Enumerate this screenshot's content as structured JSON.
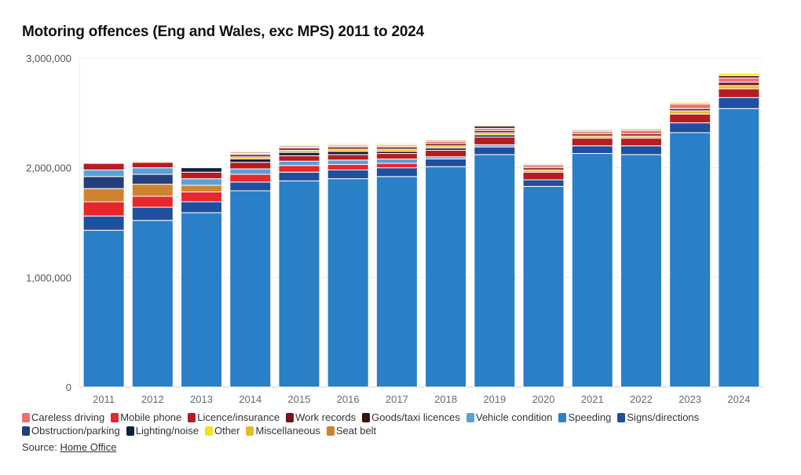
{
  "title": "Motoring offences (Eng and Wales, exc MPS) 2011 to 2024",
  "source": {
    "label": "Source:",
    "link": "Home Office"
  },
  "legend": [
    {
      "name": "Careless driving",
      "color": "#ef6f77"
    },
    {
      "name": "Mobile phone",
      "color": "#e8262b"
    },
    {
      "name": "Licence/insurance",
      "color": "#b71c22"
    },
    {
      "name": "Work records",
      "color": "#7a1416"
    },
    {
      "name": "Goods/taxi licences",
      "color": "#3a1010"
    },
    {
      "name": "Vehicle condition",
      "color": "#5ca0d8"
    },
    {
      "name": "Speeding",
      "color": "#2a7fc6"
    },
    {
      "name": "Signs/directions",
      "color": "#1f4f9f"
    },
    {
      "name": "Obstruction/parking",
      "color": "#253f7a"
    },
    {
      "name": "Lighting/noise",
      "color": "#10203f"
    },
    {
      "name": "Other",
      "color": "#f4e21c"
    },
    {
      "name": "Miscellaneous",
      "color": "#e9b92a"
    },
    {
      "name": "Seat belt",
      "color": "#cf8331"
    }
  ],
  "chart_data": {
    "type": "bar",
    "stacked": true,
    "title": "Motoring offences (Eng and Wales, exc MPS) 2011 to 2024",
    "xlabel": "",
    "ylabel": "",
    "ylim": [
      0,
      3000000
    ],
    "yticks": [
      "0",
      "1,000,000",
      "2,000,000",
      "3,000,000"
    ],
    "yticks_values": [
      0,
      1000000,
      2000000,
      3000000
    ],
    "grid": true,
    "legend_position": "bottom",
    "categories": [
      "2011",
      "2012",
      "2013",
      "2014",
      "2015",
      "2016",
      "2017",
      "2018",
      "2019",
      "2020",
      "2021",
      "2022",
      "2023",
      "2024"
    ],
    "series": [
      {
        "name": "Speeding",
        "color": "#2a7fc6",
        "values": [
          1430000,
          1520000,
          1590000,
          1790000,
          1880000,
          1900000,
          1920000,
          2010000,
          2120000,
          1830000,
          2130000,
          2120000,
          2320000,
          2540000
        ]
      },
      {
        "name": "Signs/directions",
        "color": "#1f4f9f",
        "values": [
          130000,
          120000,
          100000,
          80000,
          80000,
          80000,
          80000,
          70000,
          70000,
          60000,
          70000,
          80000,
          90000,
          100000
        ]
      },
      {
        "name": "Mobile phone",
        "color": "#e8262b",
        "values": [
          130000,
          100000,
          90000,
          70000,
          60000,
          50000,
          40000,
          0,
          0,
          0,
          0,
          0,
          0,
          0
        ]
      },
      {
        "name": "Seat belt",
        "color": "#cf8331",
        "values": [
          120000,
          110000,
          60000,
          0,
          0,
          0,
          0,
          0,
          0,
          0,
          0,
          0,
          0,
          0
        ]
      },
      {
        "name": "Obstruction/parking",
        "color": "#253f7a",
        "values": [
          110000,
          90000,
          0,
          0,
          0,
          0,
          0,
          0,
          0,
          0,
          0,
          0,
          0,
          0
        ]
      },
      {
        "name": "Vehicle condition",
        "color": "#5ca0d8",
        "values": [
          60000,
          60000,
          60000,
          50000,
          40000,
          40000,
          40000,
          20000,
          20000,
          0,
          0,
          0,
          0,
          0
        ]
      },
      {
        "name": "Licence/insurance",
        "color": "#b71c22",
        "values": [
          60000,
          50000,
          60000,
          60000,
          50000,
          50000,
          50000,
          60000,
          70000,
          70000,
          70000,
          70000,
          80000,
          80000
        ]
      },
      {
        "name": "Lighting/noise",
        "color": "#10203f",
        "values": [
          0,
          0,
          40000,
          30000,
          30000,
          30000,
          20000,
          20000,
          20000,
          0,
          0,
          0,
          0,
          0
        ]
      },
      {
        "name": "Miscellaneous",
        "color": "#e9b92a",
        "values": [
          0,
          0,
          0,
          20000,
          20000,
          20000,
          20000,
          20000,
          20000,
          20000,
          20000,
          20000,
          30000,
          30000
        ]
      },
      {
        "name": "Work records",
        "color": "#7a1416",
        "values": [
          0,
          0,
          0,
          20000,
          20000,
          20000,
          20000,
          20000,
          20000,
          20000,
          20000,
          20000,
          20000,
          30000
        ]
      },
      {
        "name": "Careless driving",
        "color": "#ef6f77",
        "values": [
          0,
          0,
          0,
          10000,
          10000,
          10000,
          10000,
          20000,
          20000,
          20000,
          20000,
          30000,
          40000,
          40000
        ]
      },
      {
        "name": "Goods/taxi licences",
        "color": "#3a1010",
        "values": [
          0,
          0,
          0,
          10000,
          10000,
          10000,
          10000,
          10000,
          20000,
          10000,
          10000,
          10000,
          10000,
          20000
        ]
      },
      {
        "name": "Other",
        "color": "#f4e21c",
        "values": [
          0,
          10000,
          0,
          10000,
          10000,
          10000,
          10000,
          10000,
          10000,
          10000,
          10000,
          10000,
          10000,
          20000
        ]
      }
    ]
  }
}
